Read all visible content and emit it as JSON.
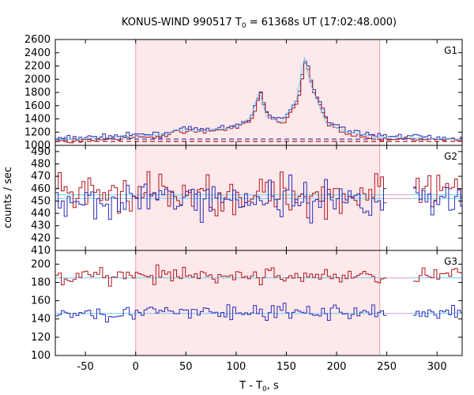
{
  "chart_data": {
    "type": "line",
    "title": "KONUS-WIND 990517 T",
    "title_sub": "0",
    "title_rest": " = 61368s UT (17:02:48.000)",
    "xlabel": "T - T",
    "xlabel_sub": "0",
    "xlabel_rest": ", s",
    "ylabel": "counts / sec",
    "xlim": [
      -80,
      325
    ],
    "xticks": [
      -50,
      0,
      50,
      100,
      150,
      200,
      250,
      300
    ],
    "shaded_interval": [
      0,
      243
    ],
    "colors": {
      "red": "#b0141c",
      "blue": "#2a2ab8",
      "cyan": "#6ccff0",
      "shade": "#fde8ea",
      "shade_edge": "#e8a0a8",
      "pink": "#f0a8d0"
    },
    "panels": [
      {
        "name": "G1",
        "ylim": [
          1000,
          2600
        ],
        "yticks": [
          1000,
          1200,
          1400,
          1600,
          1800,
          2000,
          2200,
          2400,
          2600
        ],
        "background_levels": [
          1095,
          1060
        ],
        "series": [
          {
            "color": "blue",
            "peaks": [
              [
                -80,
                1100
              ],
              [
                30,
                1180
              ],
              [
                40,
                1260
              ],
              [
                60,
                1230
              ],
              [
                100,
                1290
              ],
              [
                115,
                1450
              ],
              [
                123,
                1850
              ],
              [
                130,
                1460
              ],
              [
                145,
                1370
              ],
              [
                160,
                1700
              ],
              [
                168,
                2350
              ],
              [
                175,
                1900
              ],
              [
                190,
                1350
              ],
              [
                210,
                1220
              ],
              [
                240,
                1150
              ],
              [
                325,
                1110
              ]
            ],
            "noise": 25
          },
          {
            "color": "red",
            "peaks": [
              [
                -80,
                1060
              ],
              [
                30,
                1140
              ],
              [
                40,
                1220
              ],
              [
                60,
                1200
              ],
              [
                100,
                1260
              ],
              [
                115,
                1420
              ],
              [
                123,
                1790
              ],
              [
                130,
                1420
              ],
              [
                145,
                1330
              ],
              [
                160,
                1650
              ],
              [
                168,
                2300
              ],
              [
                175,
                1850
              ],
              [
                190,
                1310
              ],
              [
                210,
                1180
              ],
              [
                240,
                1100
              ],
              [
                325,
                1080
              ]
            ],
            "noise": 22
          }
        ]
      },
      {
        "name": "G2",
        "ylim": [
          410,
          495
        ],
        "yticks": [
          410,
          420,
          430,
          440,
          450,
          460,
          470,
          480,
          490
        ],
        "background_levels": [
          455,
          452
        ],
        "series": [
          {
            "color": "red",
            "mean": 455,
            "noise": 11
          },
          {
            "color": "blue",
            "mean": 452,
            "noise": 11
          }
        ]
      },
      {
        "name": "G3",
        "ylim": [
          100,
          215
        ],
        "yticks": [
          100,
          120,
          140,
          160,
          180,
          200
        ],
        "background_levels": [
          185,
          146
        ],
        "series": [
          {
            "color": "red",
            "mean": 187,
            "noise": 6
          },
          {
            "color": "blue",
            "mean": 147,
            "noise": 6
          }
        ]
      }
    ]
  }
}
